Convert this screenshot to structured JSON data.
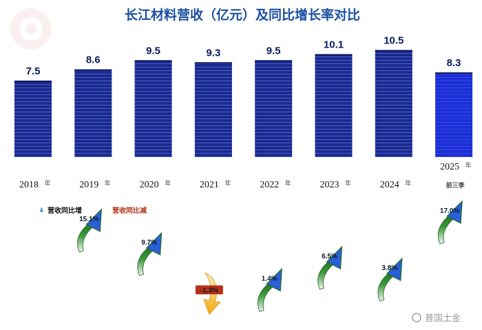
{
  "chart_data": {
    "type": "bar",
    "title": "长江材料营收（亿元）及同比增长率对比",
    "categories": [
      "2018",
      "2019",
      "2020",
      "2021",
      "2022",
      "2023",
      "2024",
      "2025"
    ],
    "category_suffix": "年",
    "last_category_note": "前三季",
    "values": [
      7.5,
      8.6,
      9.5,
      9.3,
      9.5,
      10.1,
      10.5,
      8.3
    ],
    "value_labels": [
      "7.5",
      "8.6",
      "9.5",
      "9.3",
      "9.5",
      "10.1",
      "10.5",
      "8.3"
    ],
    "ylim": [
      0,
      11
    ],
    "growth": [
      {
        "category": "2019",
        "value": 15.1,
        "label": "15.1%"
      },
      {
        "category": "2020",
        "value": 9.7,
        "label": "9.7%"
      },
      {
        "category": "2021",
        "value": -1.3,
        "label": "-1.3%"
      },
      {
        "category": "2022",
        "value": 1.4,
        "label": "1.4%"
      },
      {
        "category": "2023",
        "value": 6.5,
        "label": "6.5%"
      },
      {
        "category": "2024",
        "value": 3.8,
        "label": "3.8%"
      },
      {
        "category": "2025",
        "value": 17.0,
        "label": "17.0%"
      }
    ],
    "legend": {
      "increase_label": "营收同比增",
      "decrease_label": "营收同比减"
    },
    "grid": false
  },
  "colors": {
    "title": "#1a4fa0",
    "bar": "#1b2a8c",
    "bar_stripe": "#3a5ad0",
    "bar_last": "#1d2fd6",
    "arrow_up_fill": "#2f7a2f",
    "arrow_up_head": "#2a5fd8",
    "arrow_down": "#f2b61a",
    "legend_increase": "#111111",
    "legend_decrease": "#b23015"
  },
  "watermark": "普国土金"
}
